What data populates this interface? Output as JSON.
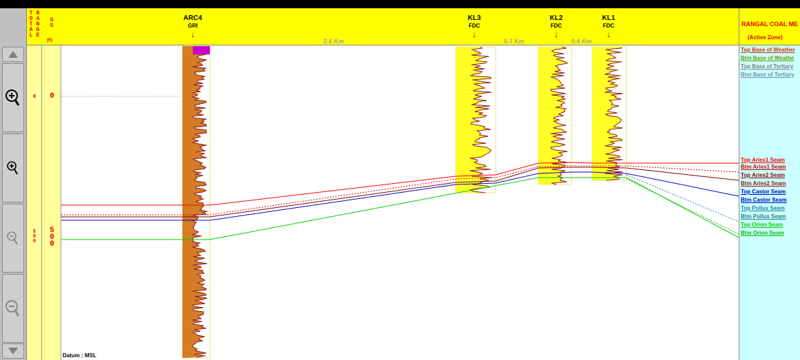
{
  "scales": {
    "total_header": "TOTAL",
    "range_header": "RANGE",
    "ss_header": "SS",
    "ss_unit": "(ft)",
    "depth_labels_left": [
      "0",
      "500"
    ],
    "depth_labels_right": [
      "0",
      "500"
    ]
  },
  "wells": [
    {
      "name": "ARC4",
      "log": "GRI"
    },
    {
      "name": "KL3",
      "log": "FDC"
    },
    {
      "name": "KL2",
      "log": "FDC"
    },
    {
      "name": "KL1",
      "log": "FDC"
    }
  ],
  "distances": [
    "2.6 Km",
    "0.7 Km",
    "0.4 Km"
  ],
  "arrow_glyph": "↓",
  "panel": {
    "title": "RANGAL COAL ME",
    "subtitle": "(Active Zone)",
    "horizons": [
      {
        "label": "Top Base of Weather",
        "color": "#cc3300"
      },
      {
        "label": "Btm Base of Weathe",
        "color": "#669900"
      },
      {
        "label": "Top Base of Tertiary",
        "color": "#7f7f7f"
      },
      {
        "label": "Btm Base of Tertiary",
        "color": "#6f8fb0"
      },
      {
        "label": "Top Aries1 Seam",
        "color": "#ff0000"
      },
      {
        "label": "Btm Aries1 Seam",
        "color": "#cc0000"
      },
      {
        "label": "Top Aries2 Seam",
        "color": "#800000"
      },
      {
        "label": "Btm Aries2 Seam",
        "color": "#8b1a1a"
      },
      {
        "label": "Top Castor Seam",
        "color": "#0000cc"
      },
      {
        "label": "Btm Castor Seam",
        "color": "#0000cc"
      },
      {
        "label": "Top Pollux Seam",
        "color": "#2a7fa0"
      },
      {
        "label": "Btm Pollux Seam",
        "color": "#208080"
      },
      {
        "label": "Top Orion Seam",
        "color": "#00cc00"
      },
      {
        "label": "Btm Orion Seam",
        "color": "#00bb00"
      }
    ]
  },
  "datum": "Datum : MSL",
  "colors": {
    "header_yellow": "#ffff00",
    "scale_yellow": "#ffff99",
    "panel_cyan": "#ccffff",
    "label_red": "#e00000",
    "log_curve": "#8b1a1a",
    "coal_fill": "#cc6600",
    "sand_fill": "#ffff00"
  },
  "icons": [
    "scroll-up-icon",
    "zoom-in-large-icon",
    "zoom-in-icon",
    "zoom-out-icon",
    "zoom-out-large-icon",
    "scroll-down-icon"
  ]
}
